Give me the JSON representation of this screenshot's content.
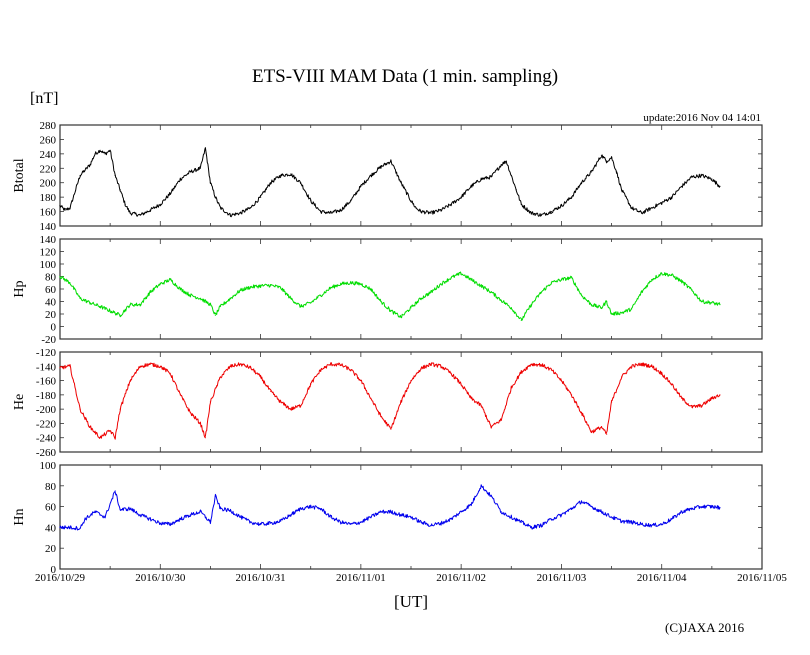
{
  "page": {
    "title": "ETS-VIII MAM Data (1 min. sampling)",
    "unit_label": "[nT]",
    "update_text": "update:2016 Nov 04 14:01",
    "xlabel": "[UT]",
    "copyright": "(C)JAXA 2016"
  },
  "chart_data": [
    {
      "type": "line",
      "panel": "Btotal",
      "ylabel": "Btotal",
      "color": "#000000",
      "ylim": [
        140,
        280
      ],
      "yticks": [
        140,
        160,
        180,
        200,
        220,
        240,
        260,
        280
      ],
      "x_unit": "days since 2016/10/29 00:00 UT",
      "x": [
        0.0,
        0.05,
        0.1,
        0.2,
        0.3,
        0.35,
        0.4,
        0.45,
        0.5,
        0.55,
        0.6,
        0.65,
        0.7,
        0.8,
        0.9,
        1.0,
        1.1,
        1.2,
        1.3,
        1.4,
        1.45,
        1.5,
        1.55,
        1.6,
        1.7,
        1.8,
        1.9,
        2.0,
        2.1,
        2.2,
        2.3,
        2.4,
        2.5,
        2.6,
        2.7,
        2.8,
        2.9,
        3.0,
        3.1,
        3.2,
        3.3,
        3.4,
        3.5,
        3.55,
        3.6,
        3.7,
        3.8,
        3.9,
        4.0,
        4.1,
        4.2,
        4.3,
        4.4,
        4.45,
        4.5,
        4.55,
        4.6,
        4.7,
        4.8,
        4.9,
        5.0,
        5.1,
        5.2,
        5.3,
        5.4,
        5.45,
        5.5,
        5.55,
        5.6,
        5.7,
        5.8,
        5.9,
        6.0,
        6.1,
        6.2,
        6.3,
        6.4,
        6.5,
        6.58
      ],
      "y": [
        168,
        162,
        165,
        210,
        225,
        240,
        245,
        240,
        245,
        210,
        190,
        170,
        158,
        155,
        162,
        170,
        185,
        205,
        215,
        220,
        248,
        200,
        180,
        165,
        155,
        158,
        165,
        180,
        200,
        210,
        212,
        200,
        175,
        160,
        158,
        162,
        175,
        195,
        210,
        222,
        230,
        200,
        175,
        165,
        160,
        158,
        162,
        170,
        180,
        195,
        205,
        208,
        225,
        230,
        210,
        190,
        170,
        158,
        155,
        160,
        168,
        180,
        200,
        215,
        238,
        230,
        235,
        215,
        190,
        165,
        158,
        165,
        172,
        180,
        195,
        208,
        210,
        205,
        195
      ],
      "series_name": "Btotal"
    },
    {
      "type": "line",
      "panel": "Hp",
      "ylabel": "Hp",
      "color": "#00dd00",
      "ylim": [
        -20,
        140
      ],
      "yticks": [
        -20,
        0,
        20,
        40,
        60,
        80,
        100,
        120,
        140
      ],
      "x_unit": "days since 2016/10/29 00:00 UT",
      "x": [
        0.0,
        0.1,
        0.2,
        0.3,
        0.4,
        0.5,
        0.6,
        0.7,
        0.8,
        0.9,
        1.0,
        1.1,
        1.2,
        1.3,
        1.4,
        1.5,
        1.55,
        1.6,
        1.7,
        1.8,
        1.9,
        2.0,
        2.1,
        2.2,
        2.3,
        2.4,
        2.5,
        2.6,
        2.7,
        2.8,
        2.9,
        3.0,
        3.1,
        3.2,
        3.3,
        3.4,
        3.5,
        3.6,
        3.7,
        3.8,
        3.9,
        4.0,
        4.1,
        4.2,
        4.3,
        4.4,
        4.5,
        4.6,
        4.7,
        4.8,
        4.9,
        5.0,
        5.1,
        5.2,
        5.3,
        5.4,
        5.45,
        5.5,
        5.6,
        5.7,
        5.8,
        5.9,
        6.0,
        6.1,
        6.2,
        6.3,
        6.4,
        6.5,
        6.58
      ],
      "y": [
        80,
        70,
        45,
        38,
        32,
        25,
        18,
        35,
        35,
        55,
        68,
        75,
        60,
        50,
        45,
        35,
        18,
        32,
        45,
        58,
        63,
        65,
        66,
        62,
        45,
        32,
        38,
        50,
        62,
        68,
        70,
        68,
        60,
        40,
        25,
        15,
        30,
        45,
        55,
        68,
        78,
        85,
        75,
        65,
        55,
        42,
        30,
        10,
        35,
        55,
        70,
        75,
        78,
        50,
        35,
        30,
        40,
        20,
        22,
        28,
        55,
        75,
        85,
        82,
        72,
        58,
        40,
        38,
        35
      ],
      "series_name": "Hp"
    },
    {
      "type": "line",
      "panel": "He",
      "ylabel": "He",
      "color": "#ee0000",
      "ylim": [
        -260,
        -120
      ],
      "yticks": [
        -260,
        -240,
        -220,
        -200,
        -180,
        -160,
        -140,
        -120
      ],
      "x_unit": "days since 2016/10/29 00:00 UT",
      "x": [
        0.0,
        0.1,
        0.2,
        0.3,
        0.4,
        0.5,
        0.55,
        0.6,
        0.7,
        0.8,
        0.9,
        1.0,
        1.1,
        1.2,
        1.3,
        1.4,
        1.45,
        1.5,
        1.6,
        1.7,
        1.8,
        1.9,
        2.0,
        2.1,
        2.2,
        2.3,
        2.4,
        2.5,
        2.6,
        2.7,
        2.8,
        2.9,
        3.0,
        3.1,
        3.2,
        3.3,
        3.4,
        3.5,
        3.6,
        3.7,
        3.8,
        3.9,
        4.0,
        4.1,
        4.2,
        4.3,
        4.4,
        4.5,
        4.6,
        4.7,
        4.8,
        4.9,
        5.0,
        5.1,
        5.2,
        5.3,
        5.4,
        5.45,
        5.5,
        5.6,
        5.7,
        5.8,
        5.9,
        6.0,
        6.1,
        6.2,
        6.3,
        6.4,
        6.5,
        6.58
      ],
      "y": [
        -142,
        -140,
        -200,
        -225,
        -240,
        -230,
        -240,
        -200,
        -160,
        -140,
        -137,
        -140,
        -150,
        -180,
        -205,
        -220,
        -240,
        -190,
        -155,
        -140,
        -137,
        -142,
        -155,
        -175,
        -190,
        -200,
        -195,
        -165,
        -145,
        -137,
        -138,
        -145,
        -160,
        -185,
        -210,
        -228,
        -190,
        -160,
        -143,
        -137,
        -140,
        -150,
        -165,
        -185,
        -195,
        -225,
        -215,
        -170,
        -148,
        -137,
        -138,
        -145,
        -160,
        -180,
        -205,
        -232,
        -225,
        -235,
        -190,
        -155,
        -140,
        -137,
        -140,
        -150,
        -165,
        -185,
        -197,
        -195,
        -185,
        -180
      ],
      "series_name": "He"
    },
    {
      "type": "line",
      "panel": "Hn",
      "ylabel": "Hn",
      "color": "#0000ee",
      "ylim": [
        0,
        100
      ],
      "yticks": [
        0,
        20,
        40,
        60,
        80,
        100
      ],
      "xticks": [
        "2016/10/29",
        "2016/10/30",
        "2016/10/31",
        "2016/11/01",
        "2016/11/02",
        "2016/11/03",
        "2016/11/04",
        "2016/11/05"
      ],
      "xlim_days": [
        0,
        7
      ],
      "x_unit": "days since 2016/10/29 00:00 UT",
      "x": [
        0.0,
        0.1,
        0.2,
        0.25,
        0.35,
        0.45,
        0.55,
        0.6,
        0.7,
        0.8,
        0.9,
        1.0,
        1.1,
        1.2,
        1.3,
        1.4,
        1.5,
        1.55,
        1.6,
        1.7,
        1.8,
        1.9,
        2.0,
        2.1,
        2.2,
        2.3,
        2.4,
        2.5,
        2.6,
        2.7,
        2.8,
        2.9,
        3.0,
        3.1,
        3.2,
        3.3,
        3.4,
        3.5,
        3.6,
        3.7,
        3.8,
        3.9,
        4.0,
        4.1,
        4.2,
        4.3,
        4.4,
        4.5,
        4.6,
        4.7,
        4.8,
        4.9,
        5.0,
        5.1,
        5.2,
        5.3,
        5.4,
        5.5,
        5.6,
        5.7,
        5.8,
        5.9,
        6.0,
        6.1,
        6.2,
        6.3,
        6.4,
        6.5,
        6.58
      ],
      "y": [
        40,
        40,
        39,
        48,
        55,
        50,
        75,
        57,
        58,
        52,
        48,
        44,
        43,
        48,
        52,
        55,
        45,
        70,
        58,
        56,
        50,
        45,
        43,
        44,
        46,
        52,
        58,
        60,
        58,
        50,
        45,
        43,
        45,
        50,
        55,
        55,
        52,
        50,
        45,
        42,
        44,
        48,
        55,
        62,
        80,
        70,
        55,
        50,
        45,
        40,
        42,
        48,
        52,
        58,
        65,
        60,
        55,
        50,
        46,
        45,
        43,
        42,
        43,
        48,
        55,
        58,
        60,
        60,
        59
      ],
      "series_name": "Hn"
    }
  ]
}
